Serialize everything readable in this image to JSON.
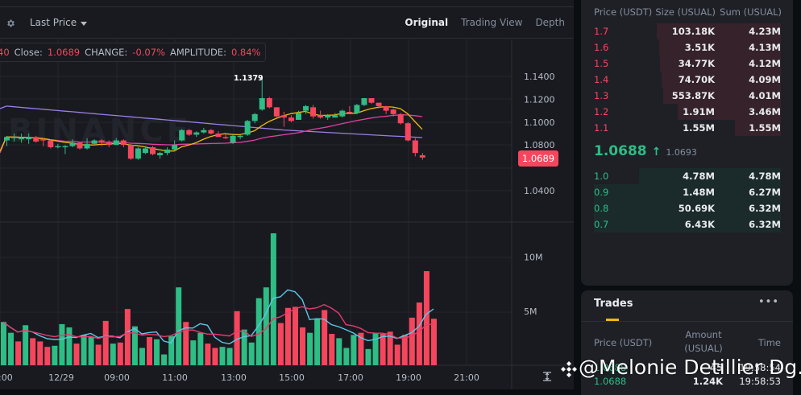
{
  "toolbar": {
    "price_type": "Last Price",
    "views": [
      "Original",
      "Trading View",
      "Depth"
    ],
    "active_view": "Original"
  },
  "ohlc_info": {
    "prefix": "40",
    "close_label": "Close:",
    "close_value": "1.0689",
    "change_label": "CHANGE:",
    "change_value": "-0.07%",
    "amplitude_label": "AMPLITUDE:",
    "amplitude_value": "0.84%"
  },
  "price_axis": [
    "1.1400",
    "1.1200",
    "1.1000",
    "1.0800",
    "1.0600",
    "1.0400"
  ],
  "last_price_tag": "1.0689",
  "high_marker": "1.1379",
  "volume_axis": [
    "10M",
    "5M"
  ],
  "time_axis": [
    ":00",
    "12/29",
    "09:00",
    "11:00",
    "13:00",
    "15:00",
    "17:00",
    "19:00",
    "21:00"
  ],
  "watermark": "BINANCE",
  "colors": {
    "up": "#2ebd85",
    "down": "#f6465d",
    "ma7": "#f0b90b",
    "ma25": "#e040a0",
    "ma99": "#9b7fe6",
    "vol_ma1": "#5bc8e8",
    "vol_ma2": "#e8396e",
    "accent": "#f0b90b"
  },
  "chart_data": {
    "type": "candlestick",
    "title": "USUAL/USDT",
    "interval": "30m",
    "ylim": [
      1.03,
      1.145
    ],
    "candles": [
      {
        "o": 1.084,
        "h": 1.088,
        "l": 1.079,
        "c": 1.087
      },
      {
        "o": 1.086,
        "h": 1.09,
        "l": 1.083,
        "c": 1.087
      },
      {
        "o": 1.086,
        "h": 1.09,
        "l": 1.082,
        "c": 1.086
      },
      {
        "o": 1.085,
        "h": 1.09,
        "l": 1.081,
        "c": 1.087
      },
      {
        "o": 1.087,
        "h": 1.088,
        "l": 1.082,
        "c": 1.083
      },
      {
        "o": 1.085,
        "h": 1.086,
        "l": 1.079,
        "c": 1.084
      },
      {
        "o": 1.084,
        "h": 1.085,
        "l": 1.077,
        "c": 1.078
      },
      {
        "o": 1.078,
        "h": 1.081,
        "l": 1.077,
        "c": 1.079
      },
      {
        "o": 1.079,
        "h": 1.08,
        "l": 1.072,
        "c": 1.079
      },
      {
        "o": 1.079,
        "h": 1.085,
        "l": 1.078,
        "c": 1.082
      },
      {
        "o": 1.082,
        "h": 1.083,
        "l": 1.076,
        "c": 1.077
      },
      {
        "o": 1.077,
        "h": 1.086,
        "l": 1.076,
        "c": 1.081
      },
      {
        "o": 1.081,
        "h": 1.085,
        "l": 1.08,
        "c": 1.084
      },
      {
        "o": 1.084,
        "h": 1.085,
        "l": 1.079,
        "c": 1.082
      },
      {
        "o": 1.082,
        "h": 1.084,
        "l": 1.078,
        "c": 1.08
      },
      {
        "o": 1.08,
        "h": 1.086,
        "l": 1.08,
        "c": 1.084
      },
      {
        "o": 1.084,
        "h": 1.085,
        "l": 1.078,
        "c": 1.08
      },
      {
        "o": 1.08,
        "h": 1.081,
        "l": 1.067,
        "c": 1.068
      },
      {
        "o": 1.068,
        "h": 1.078,
        "l": 1.067,
        "c": 1.077
      },
      {
        "o": 1.073,
        "h": 1.079,
        "l": 1.072,
        "c": 1.077
      },
      {
        "o": 1.078,
        "h": 1.079,
        "l": 1.071,
        "c": 1.072
      },
      {
        "o": 1.071,
        "h": 1.074,
        "l": 1.068,
        "c": 1.073
      },
      {
        "o": 1.073,
        "h": 1.078,
        "l": 1.071,
        "c": 1.076
      },
      {
        "o": 1.076,
        "h": 1.084,
        "l": 1.075,
        "c": 1.08
      },
      {
        "o": 1.084,
        "h": 1.094,
        "l": 1.083,
        "c": 1.093
      },
      {
        "o": 1.093,
        "h": 1.094,
        "l": 1.088,
        "c": 1.089
      },
      {
        "o": 1.089,
        "h": 1.092,
        "l": 1.087,
        "c": 1.091
      },
      {
        "o": 1.091,
        "h": 1.095,
        "l": 1.09,
        "c": 1.093
      },
      {
        "o": 1.093,
        "h": 1.094,
        "l": 1.089,
        "c": 1.09
      },
      {
        "o": 1.09,
        "h": 1.092,
        "l": 1.087,
        "c": 1.087
      },
      {
        "o": 1.087,
        "h": 1.09,
        "l": 1.085,
        "c": 1.086
      },
      {
        "o": 1.082,
        "h": 1.09,
        "l": 1.081,
        "c": 1.088
      },
      {
        "o": 1.087,
        "h": 1.089,
        "l": 1.085,
        "c": 1.088
      },
      {
        "o": 1.089,
        "h": 1.102,
        "l": 1.088,
        "c": 1.101
      },
      {
        "o": 1.101,
        "h": 1.108,
        "l": 1.099,
        "c": 1.107
      },
      {
        "o": 1.111,
        "h": 1.138,
        "l": 1.11,
        "c": 1.121
      },
      {
        "o": 1.121,
        "h": 1.122,
        "l": 1.112,
        "c": 1.113
      },
      {
        "o": 1.113,
        "h": 1.113,
        "l": 1.104,
        "c": 1.105
      },
      {
        "o": 1.106,
        "h": 1.109,
        "l": 1.096,
        "c": 1.104
      },
      {
        "o": 1.104,
        "h": 1.106,
        "l": 1.1,
        "c": 1.101
      },
      {
        "o": 1.102,
        "h": 1.11,
        "l": 1.102,
        "c": 1.108
      },
      {
        "o": 1.11,
        "h": 1.115,
        "l": 1.107,
        "c": 1.114
      },
      {
        "o": 1.113,
        "h": 1.115,
        "l": 1.103,
        "c": 1.105
      },
      {
        "o": 1.106,
        "h": 1.11,
        "l": 1.103,
        "c": 1.104
      },
      {
        "o": 1.104,
        "h": 1.107,
        "l": 1.102,
        "c": 1.106
      },
      {
        "o": 1.104,
        "h": 1.108,
        "l": 1.104,
        "c": 1.106
      },
      {
        "o": 1.105,
        "h": 1.111,
        "l": 1.104,
        "c": 1.11
      },
      {
        "o": 1.109,
        "h": 1.114,
        "l": 1.108,
        "c": 1.108
      },
      {
        "o": 1.108,
        "h": 1.116,
        "l": 1.107,
        "c": 1.115
      },
      {
        "o": 1.115,
        "h": 1.121,
        "l": 1.114,
        "c": 1.121
      },
      {
        "o": 1.121,
        "h": 1.121,
        "l": 1.116,
        "c": 1.117
      },
      {
        "o": 1.117,
        "h": 1.117,
        "l": 1.112,
        "c": 1.114
      },
      {
        "o": 1.114,
        "h": 1.114,
        "l": 1.107,
        "c": 1.11
      },
      {
        "o": 1.111,
        "h": 1.112,
        "l": 1.105,
        "c": 1.107
      },
      {
        "o": 1.107,
        "h": 1.108,
        "l": 1.098,
        "c": 1.099
      },
      {
        "o": 1.099,
        "h": 1.1,
        "l": 1.083,
        "c": 1.084
      },
      {
        "o": 1.084,
        "h": 1.086,
        "l": 1.07,
        "c": 1.073
      },
      {
        "o": 1.071,
        "h": 1.073,
        "l": 1.067,
        "c": 1.069
      }
    ],
    "volume_ylim": [
      0,
      13500000
    ],
    "volumes": [
      {
        "v": 4.0,
        "d": "up"
      },
      {
        "v": 3.0,
        "d": "up"
      },
      {
        "v": 2.2,
        "d": "down"
      },
      {
        "v": 3.7,
        "d": "up"
      },
      {
        "v": 2.5,
        "d": "down"
      },
      {
        "v": 2.2,
        "d": "down"
      },
      {
        "v": 1.7,
        "d": "down"
      },
      {
        "v": 1.8,
        "d": "up"
      },
      {
        "v": 3.8,
        "d": "up"
      },
      {
        "v": 3.5,
        "d": "up"
      },
      {
        "v": 2.0,
        "d": "down"
      },
      {
        "v": 2.8,
        "d": "up"
      },
      {
        "v": 2.6,
        "d": "up"
      },
      {
        "v": 1.9,
        "d": "down"
      },
      {
        "v": 4.1,
        "d": "down"
      },
      {
        "v": 2.0,
        "d": "up"
      },
      {
        "v": 2.1,
        "d": "down"
      },
      {
        "v": 5.2,
        "d": "down"
      },
      {
        "v": 3.6,
        "d": "up"
      },
      {
        "v": 1.6,
        "d": "up"
      },
      {
        "v": 2.6,
        "d": "down"
      },
      {
        "v": 2.4,
        "d": "up"
      },
      {
        "v": 1.0,
        "d": "up"
      },
      {
        "v": 2.7,
        "d": "up"
      },
      {
        "v": 7.2,
        "d": "up"
      },
      {
        "v": 4.0,
        "d": "down"
      },
      {
        "v": 2.3,
        "d": "up"
      },
      {
        "v": 3.0,
        "d": "up"
      },
      {
        "v": 2.0,
        "d": "down"
      },
      {
        "v": 1.6,
        "d": "down"
      },
      {
        "v": 1.7,
        "d": "up"
      },
      {
        "v": 1.6,
        "d": "up"
      },
      {
        "v": 5.0,
        "d": "down"
      },
      {
        "v": 3.3,
        "d": "up"
      },
      {
        "v": 2.1,
        "d": "up"
      },
      {
        "v": 6.2,
        "d": "up"
      },
      {
        "v": 7.2,
        "d": "up"
      },
      {
        "v": 12.2,
        "d": "up"
      },
      {
        "v": 3.9,
        "d": "down"
      },
      {
        "v": 5.3,
        "d": "down"
      },
      {
        "v": 5.4,
        "d": "down"
      },
      {
        "v": 3.5,
        "d": "down"
      },
      {
        "v": 3.0,
        "d": "up"
      },
      {
        "v": 4.3,
        "d": "up"
      },
      {
        "v": 5.1,
        "d": "down"
      },
      {
        "v": 2.9,
        "d": "down"
      },
      {
        "v": 2.5,
        "d": "up"
      },
      {
        "v": 1.6,
        "d": "up"
      },
      {
        "v": 2.8,
        "d": "up"
      },
      {
        "v": 3.0,
        "d": "down"
      },
      {
        "v": 1.5,
        "d": "up"
      },
      {
        "v": 3.0,
        "d": "up"
      },
      {
        "v": 2.9,
        "d": "down"
      },
      {
        "v": 3.1,
        "d": "down"
      },
      {
        "v": 1.9,
        "d": "down"
      },
      {
        "v": 2.8,
        "d": "down"
      },
      {
        "v": 4.4,
        "d": "down"
      },
      {
        "v": 5.8,
        "d": "down"
      },
      {
        "v": 8.7,
        "d": "down"
      },
      {
        "v": 4.3,
        "d": "down"
      }
    ],
    "volume_unit": "M",
    "high_annotation": 1.1379,
    "last_price": 1.0689
  },
  "orderbook": {
    "headers": [
      "Price (USDT)",
      "Size (USUAL)",
      "Sum (USUAL)"
    ],
    "asks": [
      {
        "price": "1.7",
        "size": "103.18K",
        "sum": "4.23M",
        "depth": 0.665
      },
      {
        "price": "1.6",
        "size": "3.51K",
        "sum": "4.13M",
        "depth": 0.65
      },
      {
        "price": "1.5",
        "size": "34.77K",
        "sum": "4.12M",
        "depth": 0.645
      },
      {
        "price": "1.4",
        "size": "74.70K",
        "sum": "4.09M",
        "depth": 0.64
      },
      {
        "price": "1.3",
        "size": "553.87K",
        "sum": "4.01M",
        "depth": 0.63
      },
      {
        "price": "1.2",
        "size": "1.91M",
        "sum": "3.46M",
        "depth": 0.55
      },
      {
        "price": "1.1",
        "size": "1.55M",
        "sum": "1.55M",
        "depth": 0.245
      }
    ],
    "mid_price": "1.0688",
    "mid_arrow": "↑",
    "mark_price": "1.0693",
    "bids": [
      {
        "price": "1.0",
        "size": "4.78M",
        "sum": "4.78M",
        "depth": 0.76
      },
      {
        "price": "0.9",
        "size": "1.48M",
        "sum": "6.27M",
        "depth": 1.0
      },
      {
        "price": "0.8",
        "size": "50.69K",
        "sum": "6.32M",
        "depth": 1.0
      },
      {
        "price": "0.7",
        "size": "6.43K",
        "sum": "6.32M",
        "depth": 1.0
      }
    ]
  },
  "trades": {
    "title": "Trades",
    "more_label": "•••",
    "headers": {
      "price": "Price (USDT)",
      "amount_line1": "Amount",
      "amount_line2": "(USUAL)",
      "time": "Time"
    },
    "rows": [
      {
        "price": "1.0688",
        "amount": "45",
        "time": "19:58:54"
      },
      {
        "price": "1.0688",
        "amount": "1.24K",
        "time": "19:58:53"
      }
    ]
  },
  "overlay": {
    "watermark_text": "@Melonie Detillier Dg..."
  }
}
